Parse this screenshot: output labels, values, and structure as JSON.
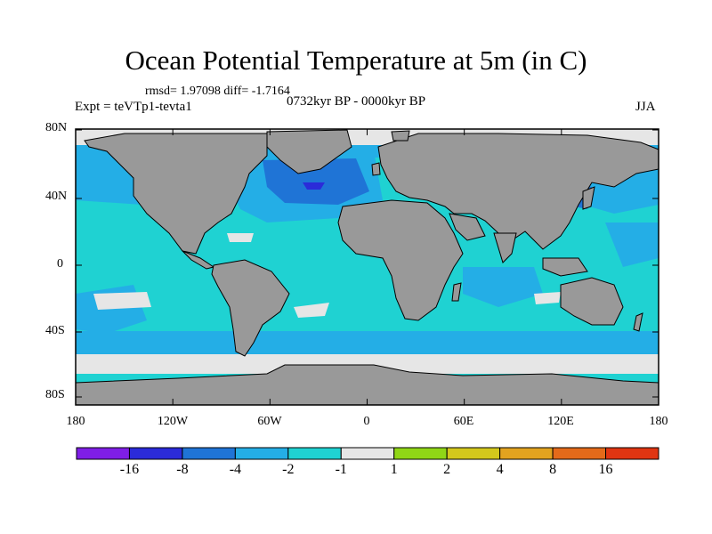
{
  "title": "Ocean Potential Temperature at 5m (in C)",
  "stats_line": "rmsd= 1.97098  diff= -1.7164",
  "experiment": "Expt = teVTp1-tevta1",
  "period": "0732kyr BP - 0000kyr BP",
  "season": "JJA",
  "lat_labels": [
    "80N",
    "40N",
    "0",
    "40S",
    "80S"
  ],
  "lon_labels": [
    "180",
    "120W",
    "60W",
    "0",
    "60E",
    "120E",
    "180"
  ],
  "colorbar": {
    "labels": [
      "-16",
      "-8",
      "-4",
      "-2",
      "-1",
      "1",
      "2",
      "4",
      "8",
      "16"
    ],
    "colors": [
      "#7f1ee6",
      "#2b2bd9",
      "#1f74d6",
      "#24aee6",
      "#1fd2d2",
      "#e6e6e6",
      "#90d616",
      "#d3c81c",
      "#e2a31f",
      "#e46a1a",
      "#e03512"
    ]
  },
  "map_colors": {
    "ocean": "#1fd2d2",
    "ocean_mid": "#24aee6",
    "ocean_deep": "#1f74d6",
    "ocean_max": "#2b2bd9",
    "near_zero": "#e6e6e6",
    "land": "#999999",
    "coast": "#000000"
  }
}
